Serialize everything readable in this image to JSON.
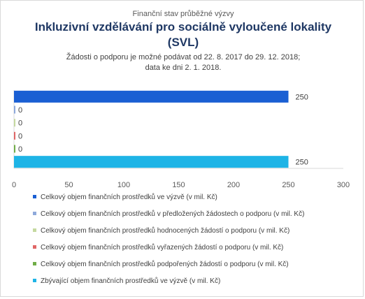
{
  "header": {
    "pretitle": "Finanční stav průběžné výzvy",
    "title_line1": "Inkluzivní vzdělávání pro sociálně vyloučené lokality",
    "title_line2": "(SVL)",
    "subtitle_line1": "Žádosti o podporu je možné podávat od 22. 8. 2017 do 29. 12. 2018;",
    "subtitle_line2": "data ke dni 2. 1. 2018."
  },
  "chart_data": {
    "type": "bar",
    "orientation": "horizontal",
    "x_ticks": [
      "0",
      "50",
      "100",
      "150",
      "200",
      "250",
      "300"
    ],
    "xlim": [
      0,
      300
    ],
    "grid": false,
    "legend_position": "bottom",
    "series": [
      {
        "name": "Celkový objem finančních prostředků ve výzvě (v mil. Kč)",
        "value": 250,
        "label": "250",
        "color": "#1a5fd3"
      },
      {
        "name": "Celkový objem finančních prostředků v předložených žádostech o podporu (v mil. Kč)",
        "value": 0,
        "label": "0",
        "color": "#8ea9db"
      },
      {
        "name": "Celkový objem finančních prostředků hodnocených žádostí o podporu (v mil. Kč)",
        "value": 0,
        "label": "0",
        "color": "#c5d9a0"
      },
      {
        "name": "Celkový objem finančních prostředků vyřazených žádostí o podporu (v mil. Kč)",
        "value": 0,
        "label": "0",
        "color": "#e06666"
      },
      {
        "name": "Celkový objem finančních prostředků podpořených žádostí o podporu (v mil. Kč)",
        "value": 0,
        "label": "0",
        "color": "#70ad47"
      },
      {
        "name": "Zbývající objem finančních prostředků ve výzvě (v mil. Kč)",
        "value": 250,
        "label": "250",
        "color": "#1eb4e6"
      }
    ]
  }
}
